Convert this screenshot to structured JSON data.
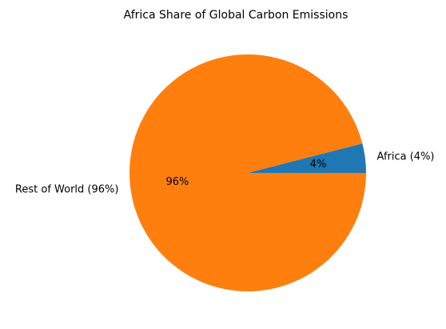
{
  "chart_data": {
    "type": "pie",
    "title": "Africa Share of Global Carbon Emissions",
    "slices": [
      {
        "label": "Africa (4%)",
        "value": 4,
        "pct_label": "4%",
        "color": "#1f77b4"
      },
      {
        "label": "Rest of World (96%)",
        "value": 96,
        "pct_label": "96%",
        "color": "#ff7f0e"
      }
    ],
    "start_angle_deg": 0,
    "direction": "counterclockwise"
  }
}
